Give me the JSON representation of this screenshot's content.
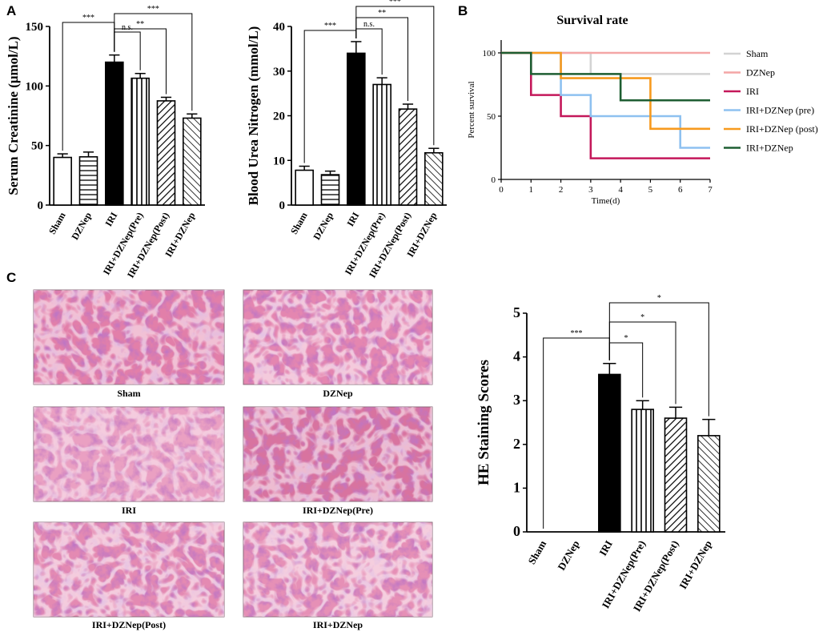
{
  "panel_labels": {
    "a": "A",
    "b": "B",
    "c": "C"
  },
  "micrographs": {
    "captions": [
      "Sham",
      "DZNep",
      "IRI",
      "IRI+DZNep(Pre)",
      "IRI+DZNep(Post)",
      "IRI+DZNep"
    ]
  },
  "chart_data": [
    {
      "id": "creatinine",
      "type": "bar",
      "title": "",
      "xlabel": "",
      "ylabel": "Serum Creatinine (μmol/L)",
      "categories": [
        "Sham",
        "DZNep",
        "IRI",
        "IRI+DZNep(Pre)",
        "IRI+DZNep(Post)",
        "IRI+DZNep"
      ],
      "values": [
        40,
        40.5,
        120,
        106.5,
        87.5,
        73
      ],
      "errors": [
        3,
        4,
        6,
        4,
        3,
        3.5
      ],
      "fill_patterns": [
        "white",
        "hstripe",
        "black",
        "vstripe",
        "dstripe",
        "bstripe"
      ],
      "ylim": [
        0,
        150
      ],
      "yticks": [
        0,
        50,
        100,
        150
      ],
      "significance": [
        {
          "from": 0,
          "to": 2,
          "label": "***"
        },
        {
          "from": 2,
          "to": 3,
          "label": "n.s."
        },
        {
          "from": 2,
          "to": 4,
          "label": "**"
        },
        {
          "from": 2,
          "to": 5,
          "label": "***"
        }
      ]
    },
    {
      "id": "bun",
      "type": "bar",
      "title": "",
      "xlabel": "",
      "ylabel": "Blood Urea Nitrogen (mmol/L)",
      "categories": [
        "Sham",
        "DZNep",
        "IRI",
        "IRI+DZNep(Pre)",
        "IRI+DZNep(Post)",
        "IRI+DZNep"
      ],
      "values": [
        7.8,
        6.8,
        34,
        27,
        21.5,
        11.7
      ],
      "errors": [
        0.9,
        0.8,
        2.6,
        1.5,
        1.1,
        1.0
      ],
      "fill_patterns": [
        "white",
        "hstripe",
        "black",
        "vstripe",
        "dstripe",
        "bstripe"
      ],
      "ylim": [
        0,
        40
      ],
      "yticks": [
        0,
        10,
        20,
        30,
        40
      ],
      "significance": [
        {
          "from": 0,
          "to": 2,
          "label": "***"
        },
        {
          "from": 2,
          "to": 3,
          "label": "n.s."
        },
        {
          "from": 2,
          "to": 4,
          "label": "**"
        },
        {
          "from": 2,
          "to": 5,
          "label": "***"
        }
      ]
    },
    {
      "id": "survival",
      "type": "line",
      "title": "Survival rate",
      "xlabel": "Time(d)",
      "ylabel": "Percent survival",
      "xlim": [
        0,
        7
      ],
      "ylim": [
        0,
        100
      ],
      "xticks": [
        0,
        1,
        2,
        3,
        4,
        5,
        6,
        7
      ],
      "yticks": [
        0,
        50,
        100
      ],
      "legend_position": "right",
      "series": [
        {
          "name": "Sham",
          "color": "#d3d3d3",
          "x": [
            0,
            3,
            3,
            7
          ],
          "y": [
            100,
            100,
            83.3,
            83.3
          ]
        },
        {
          "name": "DZNep",
          "color": "#f4a6a6",
          "x": [
            0,
            7
          ],
          "y": [
            100,
            100
          ]
        },
        {
          "name": "IRI",
          "color": "#c4185a",
          "x": [
            0,
            1,
            1,
            2,
            2,
            3,
            3,
            7
          ],
          "y": [
            100,
            100,
            66.7,
            66.7,
            50,
            50,
            16.7,
            16.7
          ]
        },
        {
          "name": "IRI+DZNep (pre)",
          "color": "#8ec1f0",
          "x": [
            0,
            2,
            2,
            3,
            3,
            6,
            6,
            7
          ],
          "y": [
            100,
            100,
            66.7,
            66.7,
            50,
            50,
            25,
            25
          ]
        },
        {
          "name": "IRI+DZNep (post)",
          "color": "#f79a1e",
          "x": [
            0,
            2,
            2,
            5,
            5,
            7
          ],
          "y": [
            100,
            100,
            80,
            80,
            40,
            40
          ]
        },
        {
          "name": "IRI+DZNep",
          "color": "#1e5e32",
          "x": [
            0,
            1,
            1,
            4,
            4,
            7
          ],
          "y": [
            100,
            100,
            83.3,
            83.3,
            62.5,
            62.5
          ]
        }
      ]
    },
    {
      "id": "he_score",
      "type": "bar",
      "title": "",
      "xlabel": "",
      "ylabel": "HE Staining Scores",
      "categories": [
        "Sham",
        "DZNep",
        "IRI",
        "IRI+DZNep(Pre)",
        "IRI+DZNep(Post)",
        "IRI+DZNep"
      ],
      "values": [
        0,
        0,
        3.6,
        2.8,
        2.6,
        2.2
      ],
      "errors": [
        0,
        0,
        0.25,
        0.2,
        0.25,
        0.37
      ],
      "fill_patterns": [
        "white",
        "hstripe",
        "black",
        "vstripe",
        "dstripe",
        "bstripe"
      ],
      "ylim": [
        0,
        5
      ],
      "yticks": [
        0,
        1,
        2,
        3,
        4,
        5
      ],
      "significance": [
        {
          "from": 0,
          "to": 2,
          "label": "***"
        },
        {
          "from": 2,
          "to": 3,
          "label": "*"
        },
        {
          "from": 2,
          "to": 4,
          "label": "*"
        },
        {
          "from": 2,
          "to": 5,
          "label": "*"
        }
      ]
    }
  ]
}
